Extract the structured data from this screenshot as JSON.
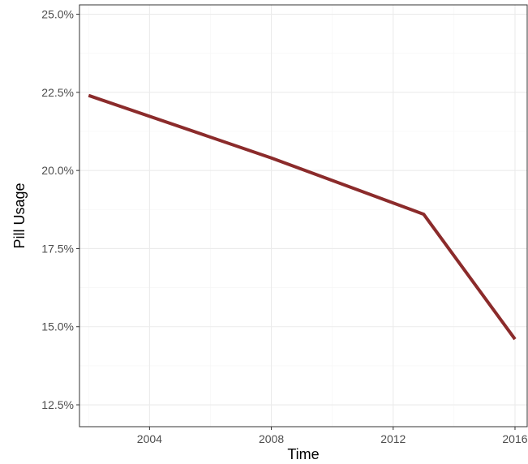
{
  "chart_data": {
    "type": "line",
    "title": "",
    "xlabel": "Time",
    "ylabel": "Pill Usage",
    "xlim": [
      2001.7,
      2016.4
    ],
    "ylim": [
      11.8,
      25.3
    ],
    "x_ticks": [
      2004,
      2008,
      2012,
      2016
    ],
    "x_tick_labels": [
      "2004",
      "2008",
      "2012",
      "2016"
    ],
    "y_ticks": [
      12.5,
      15.0,
      17.5,
      20.0,
      22.5,
      25.0
    ],
    "y_tick_labels": [
      "12.5%",
      "15.0%",
      "17.5%",
      "20.0%",
      "22.5%",
      "25.0%"
    ],
    "grid": true,
    "legend": "none",
    "series": [
      {
        "x": [
          2002,
          2008,
          2013,
          2016
        ],
        "y": [
          22.4,
          20.4,
          18.6,
          14.6
        ]
      }
    ],
    "colors": {
      "line": "#8b2b2b",
      "grid_major": "#ebebeb",
      "grid_minor": "#f5f5f5",
      "panel_border": "#333333"
    }
  }
}
